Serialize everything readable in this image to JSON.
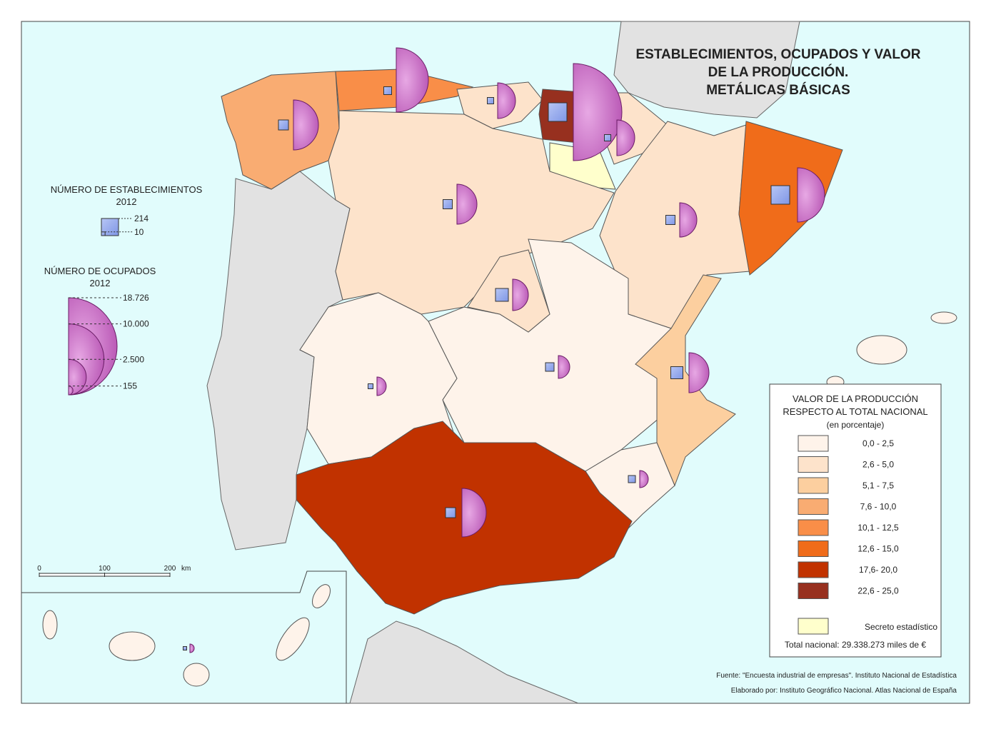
{
  "title": [
    "ESTABLECIMIENTOS, OCUPADOS Y VALOR",
    "DE LA PRODUCCIÓN.",
    "METÁLICAS BÁSICAS"
  ],
  "legend_establecimientos": {
    "title": [
      "NÚMERO DE ESTABLECIMIENTOS",
      "2012"
    ],
    "sizes": [
      214,
      10
    ],
    "color": "#7f96e6"
  },
  "legend_ocupados": {
    "title": [
      "NÚMERO DE OCUPADOS",
      "2012"
    ],
    "sizes": [
      {
        "value": 18726,
        "label": "18.726"
      },
      {
        "value": 10000,
        "label": "10.000"
      },
      {
        "value": 2500,
        "label": "2.500"
      },
      155
    ],
    "color": "#b44fb0"
  },
  "legend_valor": {
    "title": [
      "VALOR DE LA PRODUCCIÓN",
      "RESPECTO AL TOTAL NACIONAL",
      "(en porcentaje)"
    ],
    "classes": [
      {
        "label": "0,0 - 2,5",
        "color": "#fef3ea"
      },
      {
        "label": "2,6 - 5,0",
        "color": "#fde3cb"
      },
      {
        "label": "5,1 - 7,5",
        "color": "#fccf9f"
      },
      {
        "label": "7,6 - 10,0",
        "color": "#f9ac72"
      },
      {
        "label": "10,1 - 12,5",
        "color": "#f98e48"
      },
      {
        "label": "12,6 - 15,0",
        "color": "#f06c1a"
      },
      {
        "label": "17,6- 20,0",
        "color": "#c13200"
      },
      {
        "label": "22,6 - 25,0",
        "color": "#97301f"
      }
    ],
    "secret": {
      "label": "Secreto estadístico",
      "color": "#ffffcc"
    },
    "total": "Total nacional: 29.338.273 miles de €"
  },
  "scale": {
    "ticks": [
      0,
      100,
      200
    ],
    "unit": "km"
  },
  "source": [
    "Fuente: \"Encuesta industrial de empresas\". Instituto Nacional de Estadística",
    "Elaborado por: Instituto Geográfico Nacional. Atlas Nacional de España"
  ]
}
